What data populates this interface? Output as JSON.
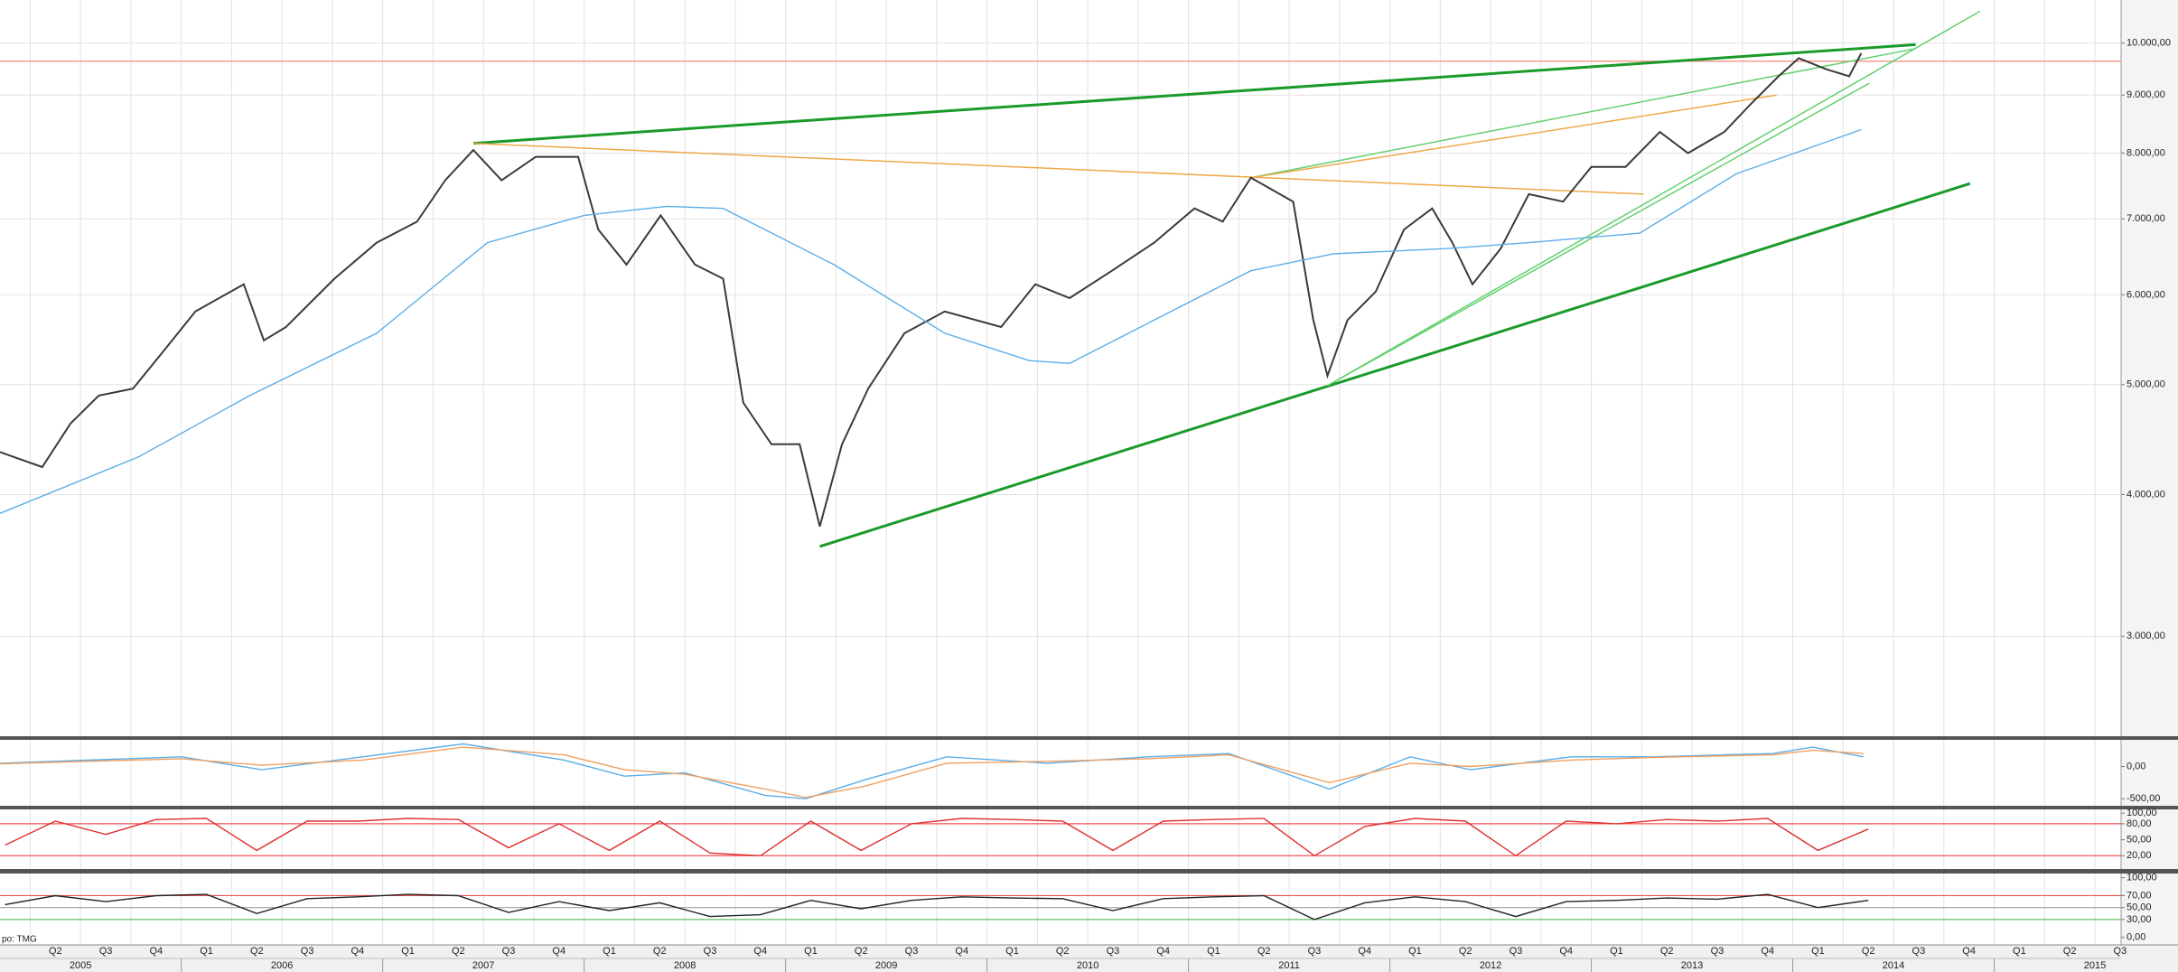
{
  "overlay_text": "po: TMG",
  "chart_data": [
    {
      "type": "line",
      "log_scale": true,
      "grid": true,
      "xlim": [
        2005.1,
        2015.63
      ],
      "ylim": [
        2449,
        10916
      ],
      "yticks": [
        {
          "value": 10000,
          "label": "10.000,00"
        },
        {
          "value": 9000,
          "label": "9.000,00"
        },
        {
          "value": 8000,
          "label": "8.000,00"
        },
        {
          "value": 7000,
          "label": "7.000,00"
        },
        {
          "value": 6000,
          "label": "6.000,00"
        },
        {
          "value": 5000,
          "label": "5.000,00"
        },
        {
          "value": 4000,
          "label": "4.000,00"
        },
        {
          "value": 3000,
          "label": "3.000,00"
        }
      ],
      "xticks": [
        {
          "value": 2005.25,
          "label": "Q2"
        },
        {
          "value": 2005.5,
          "label": "Q3"
        },
        {
          "value": 2005.75,
          "label": "Q4"
        },
        {
          "value": 2006,
          "label": "Q1"
        },
        {
          "value": 2006.25,
          "label": "Q2"
        },
        {
          "value": 2006.5,
          "label": "Q3"
        },
        {
          "value": 2006.75,
          "label": "Q4"
        },
        {
          "value": 2007,
          "label": "Q1"
        },
        {
          "value": 2007.25,
          "label": "Q2"
        },
        {
          "value": 2007.5,
          "label": "Q3"
        },
        {
          "value": 2007.75,
          "label": "Q4"
        },
        {
          "value": 2008,
          "label": "Q1"
        },
        {
          "value": 2008.25,
          "label": "Q2"
        },
        {
          "value": 2008.5,
          "label": "Q3"
        },
        {
          "value": 2008.75,
          "label": "Q4"
        },
        {
          "value": 2009,
          "label": "Q1"
        },
        {
          "value": 2009.25,
          "label": "Q2"
        },
        {
          "value": 2009.5,
          "label": "Q3"
        },
        {
          "value": 2009.75,
          "label": "Q4"
        },
        {
          "value": 2010,
          "label": "Q1"
        },
        {
          "value": 2010.25,
          "label": "Q2"
        },
        {
          "value": 2010.5,
          "label": "Q3"
        },
        {
          "value": 2010.75,
          "label": "Q4"
        },
        {
          "value": 2011,
          "label": "Q1"
        },
        {
          "value": 2011.25,
          "label": "Q2"
        },
        {
          "value": 2011.5,
          "label": "Q3"
        },
        {
          "value": 2011.75,
          "label": "Q4"
        },
        {
          "value": 2012,
          "label": "Q1"
        },
        {
          "value": 2012.25,
          "label": "Q2"
        },
        {
          "value": 2012.5,
          "label": "Q3"
        },
        {
          "value": 2012.75,
          "label": "Q4"
        },
        {
          "value": 2013,
          "label": "Q1"
        },
        {
          "value": 2013.25,
          "label": "Q2"
        },
        {
          "value": 2013.5,
          "label": "Q3"
        },
        {
          "value": 2013.75,
          "label": "Q4"
        },
        {
          "value": 2014,
          "label": "Q1"
        },
        {
          "value": 2014.25,
          "label": "Q2"
        },
        {
          "value": 2014.5,
          "label": "Q3"
        },
        {
          "value": 2014.75,
          "label": "Q4"
        },
        {
          "value": 2015,
          "label": "Q1"
        },
        {
          "value": 2015.25,
          "label": "Q2"
        },
        {
          "value": 2015.5,
          "label": "Q3"
        }
      ],
      "year_ticks": [
        2005,
        2006,
        2007,
        2008,
        2009,
        2010,
        2011,
        2012,
        2013,
        2014,
        2015
      ],
      "series": [
        {
          "color": "#3a3a3a",
          "x": [
            2005.1,
            2005.31,
            2005.45,
            2005.59,
            2005.76,
            2005.9,
            2006.07,
            2006.31,
            2006.41,
            2006.52,
            2006.76,
            2006.97,
            2007.17,
            2007.31,
            2007.45,
            2007.59,
            2007.76,
            2007.97,
            2008.07,
            2008.21,
            2008.38,
            2008.55,
            2008.69,
            2008.79,
            2008.93,
            2009.07,
            2009.17,
            2009.28,
            2009.41,
            2009.59,
            2009.79,
            2010.07,
            2010.24,
            2010.41,
            2010.62,
            2010.83,
            2011.03,
            2011.17,
            2011.31,
            2011.52,
            2011.62,
            2011.69,
            2011.79,
            2011.93,
            2012.07,
            2012.21,
            2012.31,
            2012.41,
            2012.55,
            2012.69,
            2012.86,
            2013.0,
            2013.17,
            2013.34,
            2013.48,
            2013.66,
            2013.79,
            2013.93,
            2014.03,
            2014.17,
            2014.28,
            2014.34
          ],
          "values": [
            4360,
            4230,
            4620,
            4890,
            4960,
            5320,
            5800,
            6130,
            5470,
            5620,
            6200,
            6670,
            6960,
            7570,
            8050,
            7570,
            7940,
            7940,
            6850,
            6380,
            7050,
            6380,
            6200,
            4820,
            4430,
            4430,
            3750,
            4430,
            4960,
            5550,
            5800,
            5620,
            6130,
            5960,
            6300,
            6670,
            7150,
            6960,
            7610,
            7250,
            5700,
            5090,
            5700,
            6040,
            6850,
            7150,
            6670,
            6130,
            6590,
            7360,
            7250,
            7780,
            7780,
            8350,
            8000,
            8350,
            8830,
            9350,
            9700,
            9480,
            9350,
            9800
          ]
        },
        {
          "color": "#5aaee8",
          "x": [
            2005.1,
            2005.79,
            2006.34,
            2006.97,
            2007.52,
            2008.0,
            2008.41,
            2008.69,
            2009.24,
            2009.79,
            2010.21,
            2010.41,
            2010.83,
            2011.31,
            2011.72,
            2012.28,
            2012.69,
            2013.24,
            2013.72,
            2014.34
          ],
          "values": [
            3850,
            4320,
            4890,
            5550,
            6670,
            7050,
            7180,
            7150,
            6380,
            5550,
            5250,
            5220,
            5700,
            6300,
            6520,
            6590,
            6670,
            6800,
            7670,
            8390
          ]
        }
      ],
      "hlines": [
        {
          "value": 9640,
          "color": "#f08a7a"
        }
      ],
      "trendlines": [
        {
          "x": [
            2007.45,
            2014.61
          ],
          "values": [
            8160,
            9970
          ],
          "color": "#1a9a2a",
          "width": 3
        },
        {
          "x": [
            2009.17,
            2014.88
          ],
          "values": [
            3600,
            7520
          ],
          "color": "#1a9a2a",
          "width": 3
        },
        {
          "x": [
            2011.69,
            2014.93
          ],
          "values": [
            4990,
            10670
          ],
          "color": "#62d06e",
          "width": 1.5
        },
        {
          "x": [
            2011.69,
            2014.38
          ],
          "values": [
            4990,
            9220
          ],
          "color": "#62d06e",
          "width": 1.5
        },
        {
          "x": [
            2011.31,
            2014.61
          ],
          "values": [
            7610,
            9890
          ],
          "color": "#62d06e",
          "width": 1.5
        },
        {
          "x": [
            2007.45,
            2013.26
          ],
          "values": [
            8160,
            7360
          ],
          "color": "#f0a848",
          "width": 1.5
        },
        {
          "x": [
            2011.31,
            2013.92
          ],
          "values": [
            7610,
            9000
          ],
          "color": "#f0a848",
          "width": 1.5
        }
      ]
    },
    {
      "type": "line",
      "ylim": [
        -609,
        413
      ],
      "yticks": [
        {
          "value": 0,
          "label": "0,00"
        },
        {
          "value": -500,
          "label": "-500,00"
        }
      ],
      "series": [
        {
          "color": "#5aaee8",
          "x": [
            2005.1,
            2006.0,
            2006.4,
            2006.9,
            2007.4,
            2007.9,
            2008.2,
            2008.5,
            2008.9,
            2009.1,
            2009.4,
            2009.8,
            2010.3,
            2010.8,
            2011.2,
            2011.7,
            2012.1,
            2012.4,
            2012.9,
            2013.3,
            2013.9,
            2014.1,
            2014.35
          ],
          "values": [
            50,
            150,
            -50,
            150,
            350,
            100,
            -150,
            -100,
            -450,
            -500,
            -200,
            150,
            50,
            150,
            200,
            -350,
            150,
            -50,
            150,
            150,
            200,
            300,
            150
          ]
        },
        {
          "color": "#f0a060",
          "x": [
            2005.1,
            2006.0,
            2006.4,
            2006.9,
            2007.4,
            2007.9,
            2008.2,
            2008.5,
            2008.9,
            2009.1,
            2009.4,
            2009.8,
            2010.3,
            2010.8,
            2011.2,
            2011.7,
            2012.1,
            2012.4,
            2012.9,
            2013.3,
            2013.9,
            2014.1,
            2014.35
          ],
          "values": [
            40,
            120,
            20,
            100,
            300,
            180,
            -50,
            -120,
            -350,
            -480,
            -300,
            50,
            80,
            120,
            180,
            -250,
            50,
            0,
            100,
            140,
            180,
            250,
            200
          ]
        }
      ]
    },
    {
      "type": "line",
      "ylim": [
        -5,
        107
      ],
      "yticks": [
        {
          "value": 100,
          "label": "100,00"
        },
        {
          "value": 80,
          "label": "80,00"
        },
        {
          "value": 50,
          "label": "50,00"
        },
        {
          "value": 20,
          "label": "20,00"
        }
      ],
      "series": [
        {
          "color": "#e03030",
          "x": [
            2005.125,
            2005.375,
            2005.625,
            2005.875,
            2006.125,
            2006.375,
            2006.625,
            2006.875,
            2007.125,
            2007.375,
            2007.625,
            2007.875,
            2008.125,
            2008.375,
            2008.625,
            2008.875,
            2009.125,
            2009.375,
            2009.625,
            2009.875,
            2010.125,
            2010.375,
            2010.625,
            2010.875,
            2011.125,
            2011.375,
            2011.625,
            2011.875,
            2012.125,
            2012.375,
            2012.625,
            2012.875,
            2013.125,
            2013.375,
            2013.625,
            2013.875,
            2014.125,
            2014.375
          ],
          "values": [
            40,
            85,
            60,
            88,
            90,
            30,
            85,
            85,
            90,
            88,
            35,
            80,
            30,
            85,
            25,
            20,
            85,
            30,
            80,
            90,
            88,
            85,
            30,
            85,
            88,
            90,
            20,
            75,
            90,
            85,
            20,
            85,
            80,
            88,
            85,
            90,
            30,
            70
          ]
        }
      ],
      "hlines": [
        {
          "value": 80,
          "color": "#f05050"
        },
        {
          "value": 20,
          "color": "#f05050"
        }
      ]
    },
    {
      "type": "line",
      "ylim": [
        -11,
        107
      ],
      "yticks": [
        {
          "value": 100,
          "label": "100,00"
        },
        {
          "value": 70,
          "label": "70,00"
        },
        {
          "value": 50,
          "label": "50,00"
        },
        {
          "value": 30,
          "label": "30,00"
        },
        {
          "value": 0,
          "label": "0,00"
        }
      ],
      "series": [
        {
          "color": "#222222",
          "x": [
            2005.125,
            2005.375,
            2005.625,
            2005.875,
            2006.125,
            2006.375,
            2006.625,
            2006.875,
            2007.125,
            2007.375,
            2007.625,
            2007.875,
            2008.125,
            2008.375,
            2008.625,
            2008.875,
            2009.125,
            2009.375,
            2009.625,
            2009.875,
            2010.125,
            2010.375,
            2010.625,
            2010.875,
            2011.125,
            2011.375,
            2011.625,
            2011.875,
            2012.125,
            2012.375,
            2012.625,
            2012.875,
            2013.125,
            2013.375,
            2013.625,
            2013.875,
            2014.125,
            2014.375
          ],
          "values": [
            55,
            70,
            60,
            70,
            72,
            40,
            65,
            68,
            72,
            70,
            42,
            60,
            45,
            58,
            35,
            38,
            62,
            48,
            62,
            68,
            66,
            65,
            45,
            65,
            68,
            70,
            30,
            58,
            68,
            60,
            35,
            60,
            62,
            66,
            64,
            72,
            50,
            62
          ]
        }
      ],
      "hlines": [
        {
          "value": 70,
          "color": "#f05050"
        },
        {
          "value": 50,
          "color": "#a0a0a0"
        },
        {
          "value": 30,
          "color": "#60c060"
        }
      ]
    }
  ]
}
